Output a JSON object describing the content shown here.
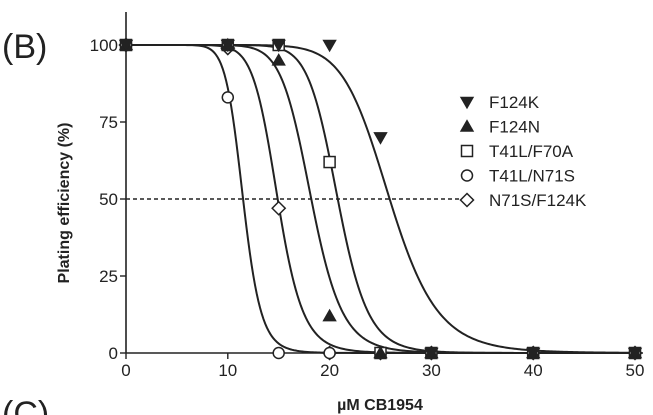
{
  "panel_labels": {
    "top": "(B)",
    "bottom": "(C)"
  },
  "chart_data": {
    "type": "scatter",
    "title": "",
    "xlabel": "µM CB1954",
    "ylabel": "Plating efficiency (%)",
    "xlim": [
      0,
      50
    ],
    "ylim": [
      0,
      100
    ],
    "x_ticks": [
      0,
      10,
      20,
      30,
      40,
      50
    ],
    "y_ticks": [
      0,
      25,
      50,
      75,
      100
    ],
    "x_tick_labels": [
      "0",
      "10",
      "20",
      "30",
      "40",
      "50"
    ],
    "y_tick_labels": [
      "0",
      "25",
      "50",
      "75",
      "100"
    ],
    "reference_line": {
      "y": 50,
      "style": "dashed"
    },
    "legend_position": "right",
    "series": [
      {
        "name": "F124K",
        "marker": "triangle-down",
        "ec50": 25.9,
        "hill": 11,
        "points": [
          [
            0,
            100
          ],
          [
            10,
            100
          ],
          [
            15,
            100
          ],
          [
            20,
            100
          ],
          [
            25,
            70
          ],
          [
            30,
            0
          ],
          [
            40,
            0
          ],
          [
            50,
            0
          ]
        ]
      },
      {
        "name": "F124N",
        "marker": "triangle-up",
        "ec50": 18.2,
        "hill": 12,
        "points": [
          [
            0,
            100
          ],
          [
            10,
            100
          ],
          [
            15,
            95
          ],
          [
            20,
            12
          ],
          [
            25,
            0
          ],
          [
            30,
            0
          ],
          [
            40,
            0
          ],
          [
            50,
            0
          ]
        ]
      },
      {
        "name": "T41L/F70A",
        "marker": "square-open",
        "ec50": 20.8,
        "hill": 14,
        "points": [
          [
            0,
            100
          ],
          [
            10,
            100
          ],
          [
            15,
            100
          ],
          [
            20,
            62
          ],
          [
            25,
            0
          ],
          [
            30,
            0
          ],
          [
            40,
            0
          ],
          [
            50,
            0
          ]
        ]
      },
      {
        "name": "T41L/N71S",
        "marker": "circle-open",
        "ec50": 11.5,
        "hill": 13,
        "points": [
          [
            0,
            100
          ],
          [
            10,
            83
          ],
          [
            15,
            0
          ],
          [
            20,
            0
          ],
          [
            25,
            0
          ],
          [
            30,
            0
          ],
          [
            40,
            0
          ],
          [
            50,
            0
          ]
        ]
      },
      {
        "name": "N71S/F124K",
        "marker": "diamond-open",
        "ec50": 14.9,
        "hill": 12,
        "points": [
          [
            0,
            100
          ],
          [
            10,
            99
          ],
          [
            15,
            47
          ],
          [
            20,
            0
          ],
          [
            25,
            0
          ],
          [
            30,
            0
          ],
          [
            40,
            0
          ],
          [
            50,
            0
          ]
        ]
      }
    ]
  }
}
